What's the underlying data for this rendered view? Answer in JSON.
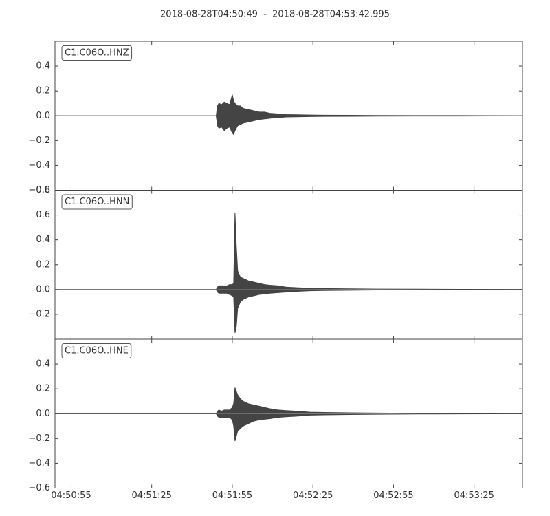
{
  "chart_data": {
    "type": "seismogram",
    "title": "2018-08-28T04:50:49  -  2018-08-28T04:53:42.995",
    "color": "#444444",
    "xlim": [
      0,
      173.995
    ],
    "xticks": [
      {
        "value": 6,
        "label": "04:50:55"
      },
      {
        "value": 36,
        "label": "04:51:25"
      },
      {
        "value": 66,
        "label": "04:51:55"
      },
      {
        "value": 96,
        "label": "04:52:25"
      },
      {
        "value": 126,
        "label": "04:52:55"
      },
      {
        "value": 156,
        "label": "04:53:25"
      }
    ],
    "panels": [
      {
        "label": "C1.C06O..HNZ",
        "ylim": [
          -0.6,
          0.6
        ],
        "yticks": [
          {
            "value": -0.6,
            "label": "−0.6"
          },
          {
            "value": -0.4,
            "label": "−0.4"
          },
          {
            "value": -0.2,
            "label": "−0.2"
          },
          {
            "value": 0,
            "label": "0.0"
          },
          0.2,
          0.4
        ],
        "x": [
          0,
          60,
          60.5,
          61,
          62,
          63,
          64,
          65,
          66,
          66.5,
          67,
          67.5,
          68,
          69,
          70,
          72,
          74,
          76,
          78,
          80,
          83,
          86,
          90,
          95,
          100,
          110,
          120,
          135,
          150,
          173.995
        ],
        "max": [
          0,
          0,
          0.08,
          0.1,
          0.09,
          0.11,
          0.1,
          0.09,
          0.17,
          0.12,
          0.1,
          0.09,
          0.08,
          0.08,
          0.06,
          0.05,
          0.04,
          0.03,
          0.03,
          0.02,
          0.015,
          0.01,
          0.008,
          0.006,
          0.005,
          0.004,
          0.003,
          0.002,
          0.002,
          0.001
        ],
        "min": [
          0,
          0,
          -0.08,
          -0.1,
          -0.09,
          -0.12,
          -0.1,
          -0.09,
          -0.14,
          -0.15,
          -0.12,
          -0.1,
          -0.08,
          -0.07,
          -0.06,
          -0.05,
          -0.04,
          -0.03,
          -0.025,
          -0.02,
          -0.015,
          -0.01,
          -0.008,
          -0.006,
          -0.005,
          -0.004,
          -0.003,
          -0.002,
          -0.002,
          -0.001
        ]
      },
      {
        "label": "C1.C06O..HNN",
        "ylim": [
          -0.4,
          0.8
        ],
        "yticks": [
          {
            "value": -0.2,
            "label": "−0.2"
          },
          {
            "value": 0,
            "label": "0.0"
          },
          0.2,
          0.4,
          0.6,
          0.8
        ],
        "x": [
          0,
          60,
          60.5,
          61,
          62,
          63,
          64,
          65,
          66,
          66.5,
          67,
          67.5,
          68,
          69,
          70,
          72,
          74,
          76,
          78,
          80,
          83,
          86,
          90,
          95,
          100,
          110,
          120,
          135,
          150,
          173.995
        ],
        "max": [
          0,
          0,
          0.02,
          0.03,
          0.03,
          0.03,
          0.03,
          0.04,
          0.04,
          0.05,
          0.62,
          0.35,
          0.15,
          0.1,
          0.09,
          0.07,
          0.06,
          0.05,
          0.04,
          0.035,
          0.03,
          0.02,
          0.015,
          0.01,
          0.008,
          0.006,
          0.004,
          0.003,
          0.002,
          0.001
        ],
        "min": [
          0,
          0,
          -0.02,
          -0.03,
          -0.03,
          -0.03,
          -0.03,
          -0.04,
          -0.05,
          -0.06,
          -0.35,
          -0.3,
          -0.15,
          -0.1,
          -0.08,
          -0.06,
          -0.05,
          -0.04,
          -0.035,
          -0.03,
          -0.025,
          -0.02,
          -0.015,
          -0.01,
          -0.008,
          -0.006,
          -0.004,
          -0.003,
          -0.002,
          -0.001
        ]
      },
      {
        "label": "C1.C06O..HNE",
        "ylim": [
          -0.6,
          0.6
        ],
        "yticks": [
          {
            "value": -0.6,
            "label": "−0.6"
          },
          {
            "value": -0.4,
            "label": "−0.4"
          },
          {
            "value": -0.2,
            "label": "−0.2"
          },
          {
            "value": 0,
            "label": "0.0"
          },
          0.2,
          0.4
        ],
        "x": [
          0,
          60,
          60.5,
          61,
          62,
          63,
          64,
          65,
          66,
          66.5,
          67,
          67.5,
          68,
          69,
          70,
          72,
          74,
          76,
          78,
          80,
          83,
          86,
          90,
          95,
          100,
          110,
          120,
          135,
          150,
          173.995
        ],
        "max": [
          0,
          0,
          0.02,
          0.03,
          0.02,
          0.03,
          0.03,
          0.03,
          0.05,
          0.08,
          0.21,
          0.18,
          0.15,
          0.12,
          0.1,
          0.08,
          0.07,
          0.06,
          0.05,
          0.04,
          0.03,
          0.025,
          0.02,
          0.012,
          0.01,
          0.007,
          0.005,
          0.003,
          0.002,
          0.001
        ],
        "min": [
          0,
          0,
          -0.02,
          -0.03,
          -0.03,
          -0.03,
          -0.03,
          -0.03,
          -0.05,
          -0.1,
          -0.22,
          -0.18,
          -0.14,
          -0.12,
          -0.1,
          -0.08,
          -0.06,
          -0.05,
          -0.045,
          -0.04,
          -0.03,
          -0.025,
          -0.02,
          -0.012,
          -0.01,
          -0.007,
          -0.005,
          -0.003,
          -0.002,
          -0.001
        ]
      }
    ]
  }
}
